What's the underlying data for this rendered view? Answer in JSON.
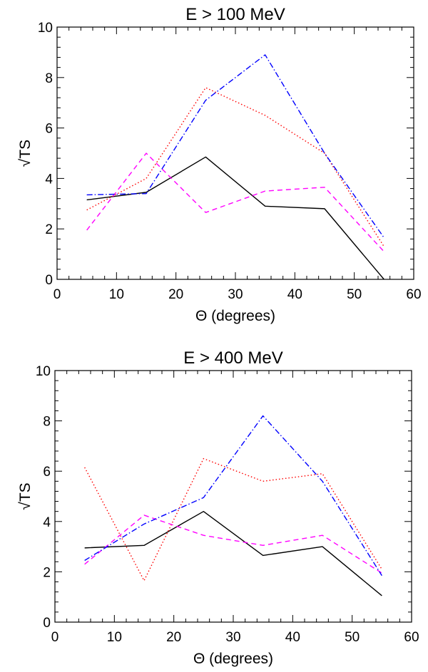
{
  "chart_data": [
    {
      "type": "line",
      "title": "E > 100 MeV",
      "xlabel": "Θ (degrees)",
      "ylabel": "√TS",
      "xlim": [
        0,
        60
      ],
      "ylim": [
        0,
        10
      ],
      "x_ticks": [
        0,
        10,
        20,
        30,
        40,
        50,
        60
      ],
      "y_ticks": [
        0,
        2,
        4,
        6,
        8,
        10
      ],
      "x": [
        5,
        15,
        25,
        35,
        45,
        55
      ],
      "series": [
        {
          "name": "solid",
          "color": "#000000",
          "style": "solid",
          "values": [
            3.15,
            3.45,
            4.85,
            2.9,
            2.8,
            0.0
          ]
        },
        {
          "name": "dotted",
          "color": "#ff0000",
          "style": "dotted",
          "values": [
            2.75,
            4.0,
            7.6,
            6.5,
            5.0,
            1.3
          ]
        },
        {
          "name": "dashed",
          "color": "#ff00ff",
          "style": "dashed",
          "values": [
            1.95,
            5.0,
            2.65,
            3.5,
            3.65,
            1.1
          ]
        },
        {
          "name": "dash-dot",
          "color": "#0000ff",
          "style": "dashdot",
          "values": [
            3.35,
            3.4,
            7.1,
            8.9,
            5.0,
            1.65
          ]
        }
      ]
    },
    {
      "type": "line",
      "title": "E > 400 MeV",
      "xlabel": "Θ (degrees)",
      "ylabel": "√TS",
      "xlim": [
        0,
        60
      ],
      "ylim": [
        0,
        10
      ],
      "x_ticks": [
        0,
        10,
        20,
        30,
        40,
        50,
        60
      ],
      "y_ticks": [
        0,
        2,
        4,
        6,
        8,
        10
      ],
      "x": [
        5,
        15,
        25,
        35,
        45,
        55
      ],
      "series": [
        {
          "name": "solid",
          "color": "#000000",
          "style": "solid",
          "values": [
            2.95,
            3.05,
            4.4,
            2.65,
            3.0,
            1.05
          ]
        },
        {
          "name": "dotted",
          "color": "#ff0000",
          "style": "dotted",
          "values": [
            6.15,
            1.65,
            6.5,
            5.6,
            5.9,
            2.1
          ]
        },
        {
          "name": "dashed",
          "color": "#ff00ff",
          "style": "dashed",
          "values": [
            2.3,
            4.25,
            3.45,
            3.05,
            3.45,
            1.95
          ]
        },
        {
          "name": "dash-dot",
          "color": "#0000ff",
          "style": "dashdot",
          "values": [
            2.45,
            3.9,
            4.95,
            8.2,
            5.6,
            1.85
          ]
        }
      ]
    }
  ]
}
